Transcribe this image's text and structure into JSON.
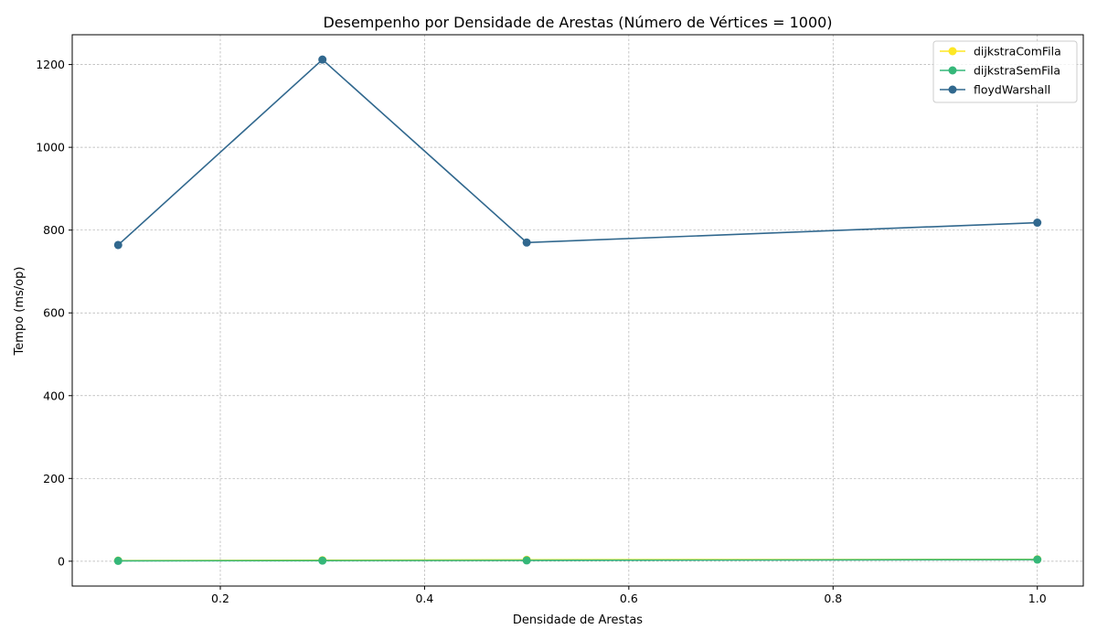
{
  "chart_data": {
    "type": "line",
    "title": "Desempenho por Densidade de Arestas (Número de Vértices = 1000)",
    "xlabel": "Densidade de Arestas",
    "ylabel": "Tempo (ms/op)",
    "xlim": [
      0.055,
      1.045
    ],
    "ylim": [
      -60,
      1272
    ],
    "xticks": [
      0.2,
      0.4,
      0.6,
      0.8,
      1.0
    ],
    "xtick_labels": [
      "0.2",
      "0.4",
      "0.6",
      "0.8",
      "1.0"
    ],
    "yticks": [
      0,
      200,
      400,
      600,
      800,
      1000,
      1200
    ],
    "ytick_labels": [
      "0",
      "200",
      "400",
      "600",
      "800",
      "1000",
      "1200"
    ],
    "grid": true,
    "legend_position": "top-right",
    "x": [
      0.1,
      0.3,
      0.5,
      1.0
    ],
    "series": [
      {
        "name": "dijkstraComFila",
        "color": "#fde725",
        "values": [
          1.5,
          2.5,
          3.5,
          4.5
        ]
      },
      {
        "name": "dijkstraSemFila",
        "color": "#35b779",
        "values": [
          1.0,
          1.5,
          2.0,
          4.0
        ]
      },
      {
        "name": "floydWarshall",
        "color": "#31688e",
        "values": [
          764,
          1212,
          770,
          818
        ]
      }
    ]
  }
}
